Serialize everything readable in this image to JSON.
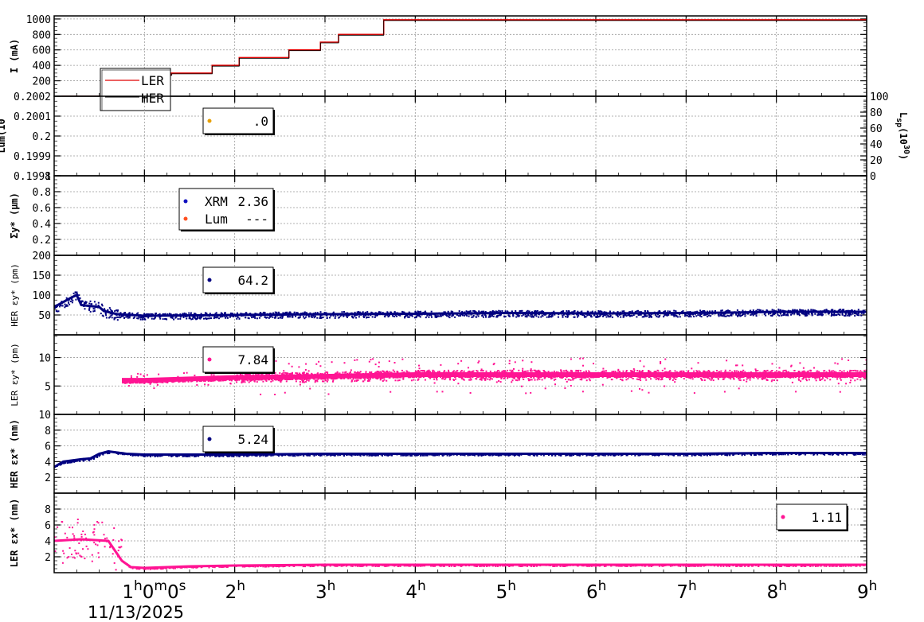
{
  "chart_data": [
    {
      "type": "line",
      "ylabel": "I (mA)",
      "ylim": [
        0,
        1040
      ],
      "yticks": [
        200,
        400,
        600,
        800,
        1000
      ],
      "legend": {
        "placement": "bottom-left",
        "entries": [
          "LER",
          "HER"
        ]
      },
      "series": [
        {
          "name": "LER",
          "color": "#e00000",
          "x": [
            0.08,
            0.55,
            0.55,
            0.85,
            0.85,
            1.3,
            1.3,
            1.75,
            1.75,
            2.05,
            2.05,
            2.6,
            2.6,
            2.95,
            2.95,
            3.15,
            3.15,
            3.65,
            3.65,
            9.0
          ],
          "y": [
            0,
            0,
            150,
            150,
            280,
            280,
            300,
            300,
            400,
            400,
            500,
            500,
            600,
            600,
            700,
            700,
            800,
            800,
            990,
            990
          ]
        },
        {
          "name": "HER",
          "color": "#000000",
          "x": [
            0.08,
            0.55,
            0.55,
            0.85,
            0.85,
            1.3,
            1.3,
            1.75,
            1.75,
            2.05,
            2.05,
            2.6,
            2.6,
            2.95,
            2.95,
            3.15,
            3.15,
            3.65,
            3.65,
            9.0
          ],
          "y": [
            0,
            0,
            150,
            150,
            280,
            280,
            300,
            300,
            400,
            400,
            500,
            500,
            600,
            600,
            700,
            700,
            800,
            800,
            990,
            990
          ]
        }
      ]
    },
    {
      "type": "line",
      "ylabel": "Lum(10",
      "ylim": [
        0.1998,
        0.2002
      ],
      "yticks_labels": [
        "0.1998",
        "0.1999",
        "0.2",
        "0.2001",
        "0.2002"
      ],
      "yticks": [
        0.1998,
        0.1999,
        0.2,
        0.2001,
        0.2002
      ],
      "y2label": "L",
      "y2label_sub": "sp",
      "y2label_unit": "(10",
      "y2label_exp": "30",
      "y2label_close": ")",
      "y2lim": [
        0,
        100
      ],
      "y2ticks": [
        0,
        20,
        40,
        60,
        80,
        100
      ],
      "legend": {
        "placement": "top-left",
        "entries": [
          {
            "color": "#e8a000",
            "value": ".0"
          }
        ]
      },
      "series": []
    },
    {
      "type": "scatter",
      "ylabel": "Σy* (μm)",
      "ylim": [
        0,
        1
      ],
      "yticks": [
        0.2,
        0.4,
        0.6,
        0.8,
        1
      ],
      "legend": {
        "placement": "top-left",
        "entries": [
          {
            "color": "#1010c0",
            "label": "XRM",
            "value": "2.36"
          },
          {
            "color": "#ff5020",
            "label": "Lum",
            "value": "---"
          }
        ]
      },
      "series": []
    },
    {
      "type": "scatter",
      "ylabel": "HER εy* (pm)",
      "ylim": [
        0,
        200
      ],
      "yticks": [
        50,
        100,
        150,
        200
      ],
      "legend": {
        "placement": "top-left",
        "entries": [
          {
            "color": "#000080",
            "value": "64.2"
          }
        ]
      },
      "series": [
        {
          "color": "#000080",
          "x": [
            0.0,
            0.2,
            0.25,
            0.3,
            0.5,
            0.55,
            0.7,
            1.0,
            2.0,
            3.0,
            4.0,
            5.0,
            6.0,
            7.0,
            7.5,
            8.0,
            9.0
          ],
          "y": [
            70,
            95,
            100,
            75,
            70,
            60,
            52,
            48,
            50,
            52,
            53,
            55,
            54,
            55,
            56,
            58,
            58
          ]
        }
      ]
    },
    {
      "type": "scatter",
      "ylabel": "LER εy* (pm)",
      "ylim": [
        0,
        14
      ],
      "yticks": [
        5,
        10
      ],
      "legend": {
        "placement": "top-left",
        "entries": [
          {
            "color": "#ff1493",
            "value": "7.84"
          }
        ]
      },
      "series": [
        {
          "color": "#ff1493",
          "x": [
            0.75,
            1.0,
            2.0,
            3.0,
            4.0,
            5.0,
            6.0,
            7.0,
            8.0,
            9.0
          ],
          "y": [
            6.0,
            6.0,
            6.5,
            6.7,
            7.0,
            7.0,
            7.0,
            7.0,
            7.0,
            7.0
          ]
        }
      ]
    },
    {
      "type": "scatter",
      "ylabel": "HER εx* (nm)",
      "ylim": [
        0,
        10
      ],
      "yticks": [
        2,
        4,
        6,
        8,
        10
      ],
      "legend": {
        "placement": "top-left",
        "entries": [
          {
            "color": "#000080",
            "value": "5.24"
          }
        ]
      },
      "series": [
        {
          "color": "#000080",
          "x": [
            0.0,
            0.1,
            0.3,
            0.4,
            0.5,
            0.6,
            0.8,
            1.0,
            2.0,
            3.0,
            4.0,
            5.0,
            6.0,
            7.0,
            8.0,
            9.0
          ],
          "y": [
            3.3,
            4.0,
            4.3,
            4.4,
            5.0,
            5.3,
            5.0,
            4.9,
            4.9,
            5.0,
            5.0,
            5.0,
            5.0,
            5.0,
            5.1,
            5.1
          ]
        }
      ]
    },
    {
      "type": "scatter",
      "ylabel": "LER εx* (nm)",
      "ylim": [
        0,
        10
      ],
      "yticks": [
        2,
        4,
        6,
        8
      ],
      "legend": {
        "placement": "top-right",
        "entries": [
          {
            "color": "#ff1493",
            "value": "1.11"
          }
        ]
      },
      "series": [
        {
          "color": "#ff1493",
          "x": [
            0.0,
            0.3,
            0.6,
            0.75,
            0.85,
            1.0,
            1.5,
            2.0,
            3.0,
            4.0,
            5.0,
            6.0,
            7.0,
            8.0,
            9.0
          ],
          "y": [
            4.0,
            4.2,
            4.0,
            1.5,
            0.7,
            0.6,
            0.8,
            0.9,
            1.0,
            1.0,
            1.0,
            1.0,
            1.0,
            1.0,
            1.0
          ]
        }
      ]
    }
  ],
  "x_axis": {
    "xlim": [
      0,
      9
    ],
    "tick_values": [
      1,
      2,
      3,
      4,
      5,
      6,
      7,
      8,
      9
    ],
    "tick_labels": [
      {
        "main": "1",
        "sup": "h",
        "rest": "0",
        "sup2": "m",
        "rest2": "0",
        "rest3": "s"
      },
      {
        "main": "2",
        "sup": "h"
      },
      {
        "main": "3",
        "sup": "h"
      },
      {
        "main": "4",
        "sup": "h"
      },
      {
        "main": "5",
        "sup": "h"
      },
      {
        "main": "6",
        "sup": "h"
      },
      {
        "main": "7",
        "sup": "h"
      },
      {
        "main": "8",
        "sup": "h"
      },
      {
        "main": "9",
        "sup": "h"
      }
    ],
    "date": "11/13/2025"
  }
}
